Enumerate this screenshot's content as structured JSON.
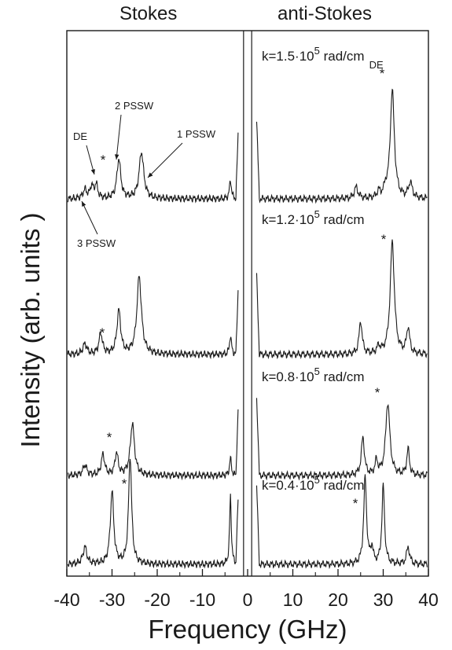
{
  "chart_data": {
    "type": "line",
    "header_left": "Stokes",
    "header_right": "anti-Stokes",
    "xlabel": "Frequency (GHz)",
    "ylabel": "Intensity (arb. units )",
    "xlim": [
      -40,
      40
    ],
    "xticks": [
      -40,
      -30,
      -20,
      -10,
      0,
      10,
      20,
      30,
      40
    ],
    "xtick_labels": [
      "-40",
      "-30",
      "-20",
      "-10",
      "0",
      "10",
      "20",
      "30",
      "40"
    ],
    "grid": false,
    "series": [
      {
        "k_prefix": "k=1.5·10",
        "k_exp": "5",
        "k_unit": " rad/cm",
        "k_suffix": "DE",
        "peaks_stokes": [
          [
            -36,
            0.1,
            0.5
          ],
          [
            -34.5,
            0.14,
            0.4
          ],
          [
            -33.5,
            0.16,
            0.4
          ],
          [
            -28.5,
            0.46,
            0.5
          ],
          [
            -23.5,
            0.54,
            0.6
          ],
          [
            -3.8,
            0.22,
            0.25
          ]
        ],
        "peaks_antistokes": [
          [
            24,
            0.13,
            0.5
          ],
          [
            29,
            0.07,
            0.4
          ],
          [
            30.5,
            0.09,
            0.4
          ],
          [
            32,
            1.25,
            0.55
          ],
          [
            36,
            0.18,
            0.5
          ]
        ]
      },
      {
        "k_prefix": "k=1.2·10",
        "k_exp": "5",
        "k_unit": " rad/cm",
        "k_suffix": "",
        "peaks_stokes": [
          [
            -36,
            0.12,
            0.5
          ],
          [
            -32.5,
            0.24,
            0.45
          ],
          [
            -28.5,
            0.5,
            0.5
          ],
          [
            -24,
            0.9,
            0.6
          ],
          [
            -3.8,
            0.22,
            0.25
          ]
        ],
        "peaks_antistokes": [
          [
            25,
            0.38,
            0.4
          ],
          [
            29,
            0.08,
            0.4
          ],
          [
            32,
            1.3,
            0.55
          ],
          [
            35.5,
            0.3,
            0.4
          ]
        ]
      },
      {
        "k_prefix": "k=0.8·10",
        "k_exp": "5",
        "k_unit": " rad/cm",
        "k_suffix": "",
        "peaks_stokes": [
          [
            -36,
            0.12,
            0.5
          ],
          [
            -32,
            0.24,
            0.45
          ],
          [
            -29,
            0.26,
            0.4
          ],
          [
            -25.5,
            0.6,
            0.55
          ],
          [
            -3.8,
            0.2,
            0.25
          ]
        ],
        "peaks_antistokes": [
          [
            25.5,
            0.44,
            0.4
          ],
          [
            28.5,
            0.16,
            0.35
          ],
          [
            31,
            0.84,
            0.55
          ],
          [
            35.5,
            0.3,
            0.35
          ]
        ]
      },
      {
        "k_prefix": "k=0.4·10",
        "k_exp": "5",
        "k_unit": " rad/cm",
        "k_suffix": "",
        "peaks_stokes": [
          [
            -36,
            0.2,
            0.5
          ],
          [
            -30,
            0.84,
            0.45
          ],
          [
            -26,
            1.25,
            0.4
          ],
          [
            -3.8,
            0.8,
            0.22
          ]
        ],
        "peaks_antistokes": [
          [
            26,
            1.0,
            0.38
          ],
          [
            27.5,
            0.18,
            0.3
          ],
          [
            30,
            0.9,
            0.35
          ],
          [
            35.5,
            0.2,
            0.4
          ]
        ]
      }
    ],
    "annotations": [
      "DE",
      "2 PSSW",
      "1 PSSW",
      "3 PSSW",
      "*"
    ]
  }
}
